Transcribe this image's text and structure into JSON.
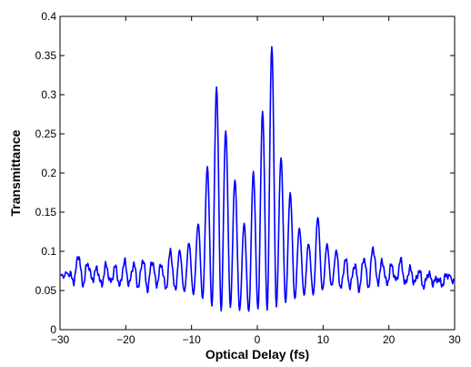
{
  "chart_data": {
    "type": "line",
    "title": "",
    "xlabel": "Optical Delay (fs)",
    "ylabel": "Transmittance",
    "xlim": [
      -30,
      30
    ],
    "ylim": [
      0,
      0.4
    ],
    "xticks": [
      -30,
      -20,
      -10,
      0,
      10,
      20,
      30
    ],
    "yticks": [
      0,
      0.05,
      0.1,
      0.15,
      0.2,
      0.25,
      0.3,
      0.35,
      0.4
    ],
    "grid": false,
    "legend": "none",
    "series": [
      {
        "color": "#0000ff",
        "x": [
          -30,
          -28.6,
          -27.9,
          -27.2,
          -26.5,
          -25.8,
          -25.1,
          -24.4,
          -23.7,
          -23.0,
          -22.3,
          -21.6,
          -20.9,
          -20.2,
          -19.5,
          -18.8,
          -18.1,
          -17.4,
          -16.7,
          -16.0,
          -15.3,
          -14.6,
          -13.9,
          -13.2,
          -12.5,
          -11.8,
          -11.1,
          -10.4,
          -9.7,
          -9.0,
          -8.3,
          -7.6,
          -6.9,
          -6.2,
          -5.5,
          -4.8,
          -4.1,
          -3.4,
          -2.7,
          -2.0,
          -1.3,
          -0.6,
          0.1,
          0.8,
          1.5,
          2.2,
          2.9,
          3.6,
          4.3,
          5.0,
          5.7,
          6.4,
          7.1,
          7.8,
          8.5,
          9.2,
          9.9,
          10.6,
          11.3,
          12.0,
          12.7,
          13.4,
          14.1,
          14.8,
          15.5,
          16.2,
          16.9,
          17.6,
          18.3,
          19.0,
          19.7,
          20.4,
          21.1,
          21.8,
          22.5,
          23.2,
          23.9,
          24.6,
          25.3,
          26.0,
          26.7,
          27.4,
          28.1,
          28.8,
          30
        ],
        "y": [
          0.068,
          0.072,
          0.062,
          0.095,
          0.058,
          0.085,
          0.064,
          0.078,
          0.057,
          0.082,
          0.06,
          0.08,
          0.056,
          0.087,
          0.058,
          0.084,
          0.055,
          0.09,
          0.052,
          0.088,
          0.058,
          0.083,
          0.052,
          0.1,
          0.05,
          0.1,
          0.048,
          0.11,
          0.045,
          0.135,
          0.04,
          0.208,
          0.03,
          0.31,
          0.025,
          0.255,
          0.03,
          0.192,
          0.025,
          0.135,
          0.022,
          0.2,
          0.025,
          0.278,
          0.025,
          0.362,
          0.03,
          0.22,
          0.035,
          0.175,
          0.04,
          0.13,
          0.045,
          0.11,
          0.045,
          0.143,
          0.05,
          0.108,
          0.055,
          0.1,
          0.052,
          0.09,
          0.055,
          0.083,
          0.052,
          0.092,
          0.055,
          0.105,
          0.06,
          0.087,
          0.058,
          0.082,
          0.062,
          0.088,
          0.058,
          0.078,
          0.06,
          0.075,
          0.055,
          0.072,
          0.06,
          0.065,
          0.058,
          0.07,
          0.062
        ]
      }
    ]
  }
}
